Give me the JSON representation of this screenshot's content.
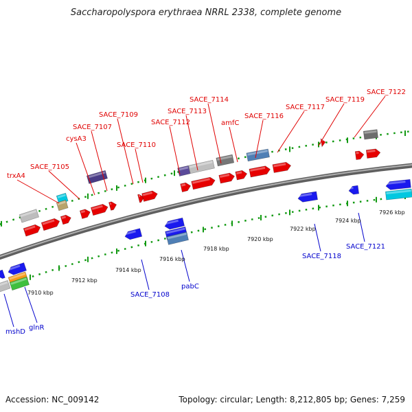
{
  "title": "Saccharopolyspora erythraea NRRL 2338, complete genome",
  "footer": {
    "accession": "Accession: NC_009142",
    "summary": "Topology: circular; Length: 8,212,805 bp; Genes: 7,259"
  },
  "colors": {
    "forward_cds": "#e60000",
    "reverse_cds": "#1a1aee",
    "rna_teal": "#00c8e0",
    "backbone": "#8a8a8a",
    "forward_label": "#e00000",
    "reverse_label": "#0000cc",
    "tick_green": "#119911"
  },
  "scale_labels": [
    "7910 kbp",
    "7912 kbp",
    "7914 kbp",
    "7916 kbp",
    "7918 kbp",
    "7920 kbp",
    "7922 kbp",
    "7924 kbp",
    "7926 kbp"
  ],
  "labels_forward": [
    "trxA4",
    "SACE_7105",
    "cysA3",
    "SACE_7107",
    "SACE_7109",
    "SACE_7110",
    "SACE_7112",
    "SACE_7113",
    "SACE_7114",
    "amfC",
    "SACE_7116",
    "SACE_7117",
    "SACE_7119",
    "SACE_7122"
  ],
  "labels_reverse": [
    "mshD",
    "glnR",
    "SACE_7108",
    "pabC",
    "SACE_7118",
    "SACE_7121"
  ]
}
